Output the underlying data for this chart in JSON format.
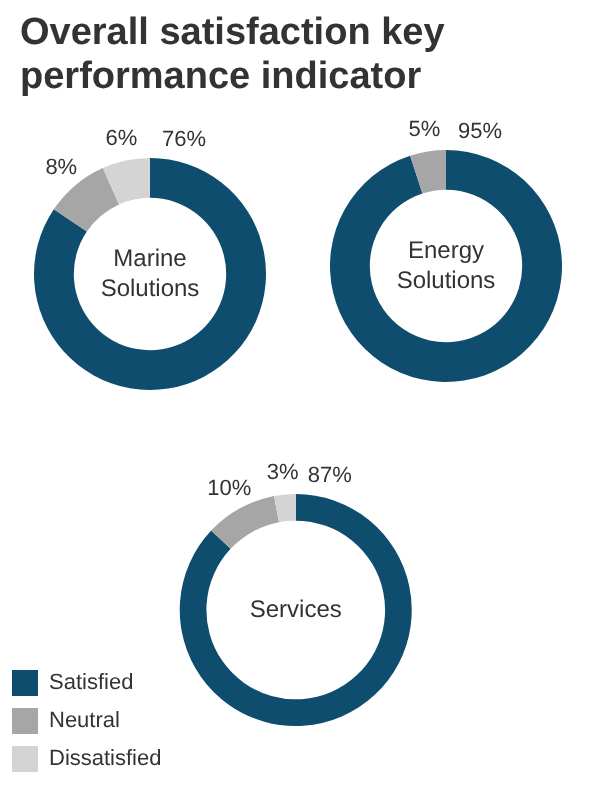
{
  "chart_data": [
    {
      "type": "donut",
      "title": "Overall satisfaction key performance indicator",
      "categories": [
        null,
        null,
        null
      ],
      "values": [
        76,
        8,
        6
      ],
      "value_labels": [
        "76%",
        "8%",
        "6%"
      ],
      "colors": [
        "#0e4d6e",
        "#a6a6a6",
        "#d4d4d4"
      ],
      "annotations": [
        "Marine Solutions"
      ]
    },
    {
      "type": "donut",
      "categories": [
        null,
        null,
        null
      ],
      "values": [
        95,
        5,
        0
      ],
      "value_labels": [
        "95%",
        "5%",
        null
      ],
      "colors": [
        "#0e4d6e",
        "#a6a6a6",
        "#d4d4d4"
      ],
      "annotations": [
        "Energy Solutions"
      ]
    },
    {
      "type": "donut",
      "categories": [
        "Satisfied",
        "Neutral",
        "Dissatisfied"
      ],
      "values": [
        87,
        10,
        3
      ],
      "value_labels": [
        "87%",
        "10%",
        "3%"
      ],
      "colors": [
        "#0e4d6e",
        "#a6a6a6",
        "#d4d4d4"
      ],
      "annotations": [
        "Services"
      ],
      "legend": "bottom left"
    }
  ]
}
